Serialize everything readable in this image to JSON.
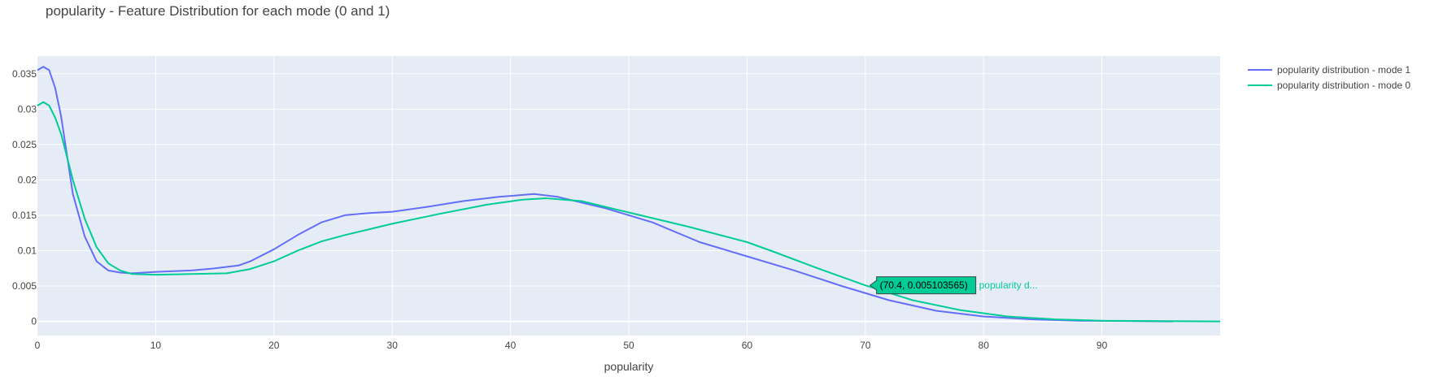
{
  "chart_data": {
    "type": "line",
    "title": "popularity - Feature Distribution for each mode (0 and 1)",
    "xlabel": "popularity",
    "ylabel": "",
    "xlim": [
      0,
      100
    ],
    "ylim": [
      -0.002,
      0.0375
    ],
    "xticks": [
      0,
      10,
      20,
      30,
      40,
      50,
      60,
      70,
      80,
      90
    ],
    "yticks": [
      0,
      0.005,
      0.01,
      0.015,
      0.02,
      0.025,
      0.03,
      0.035
    ],
    "ytick_labels": [
      "0",
      "0.005",
      "0.01",
      "0.015",
      "0.02",
      "0.025",
      "0.03",
      "0.035"
    ],
    "grid": true,
    "legend_position": "top-right outside",
    "series": [
      {
        "name": "popularity distribution - mode 1",
        "color": "#636efa",
        "x": [
          0,
          0.5,
          1,
          1.5,
          2,
          3,
          4,
          5,
          6,
          7,
          8,
          10,
          13,
          15,
          17,
          18,
          20,
          22,
          24,
          26,
          28,
          30,
          33,
          36,
          39,
          42,
          44,
          46,
          48,
          50,
          52,
          56,
          60,
          64,
          68,
          72,
          76,
          80,
          84,
          88,
          92,
          96
        ],
        "y": [
          0.0355,
          0.036,
          0.0355,
          0.033,
          0.029,
          0.018,
          0.012,
          0.0085,
          0.0072,
          0.0069,
          0.0068,
          0.007,
          0.0072,
          0.0075,
          0.0079,
          0.0085,
          0.0102,
          0.0122,
          0.014,
          0.015,
          0.0153,
          0.0155,
          0.0162,
          0.017,
          0.0176,
          0.018,
          0.0176,
          0.0168,
          0.016,
          0.015,
          0.014,
          0.0112,
          0.0092,
          0.0072,
          0.005,
          0.003,
          0.0015,
          0.0007,
          0.0003,
          0.0001,
          5e-05,
          0.0
        ]
      },
      {
        "name": "popularity distribution - mode 0",
        "color": "#00cc96",
        "x": [
          0,
          0.5,
          1,
          1.5,
          2,
          3,
          4,
          5,
          6,
          7,
          8,
          10,
          13,
          16,
          18,
          20,
          22,
          24,
          26,
          28,
          30,
          34,
          38,
          41,
          43,
          46,
          50,
          55,
          60,
          62,
          66,
          70,
          74,
          78,
          82,
          86,
          90,
          94,
          100
        ],
        "y": [
          0.0305,
          0.031,
          0.0305,
          0.0288,
          0.0265,
          0.02,
          0.0145,
          0.0105,
          0.0082,
          0.0072,
          0.0067,
          0.0066,
          0.0067,
          0.0068,
          0.0074,
          0.0085,
          0.01,
          0.0113,
          0.0122,
          0.013,
          0.0138,
          0.0152,
          0.0165,
          0.0172,
          0.0174,
          0.017,
          0.0154,
          0.0134,
          0.0112,
          0.01,
          0.0075,
          0.0051,
          0.003,
          0.0016,
          0.0007,
          0.0003,
          0.0001,
          5e-05,
          0.0
        ]
      }
    ],
    "hover": {
      "x": 70.4,
      "y": 0.005103565,
      "text": "(70.4, 0.005103565)",
      "series_label": "popularity d...",
      "color": "#00cc96"
    }
  },
  "legend": {
    "items": [
      {
        "label": "popularity distribution - mode 1",
        "color": "#636efa"
      },
      {
        "label": "popularity distribution - mode 0",
        "color": "#00cc96"
      }
    ]
  }
}
